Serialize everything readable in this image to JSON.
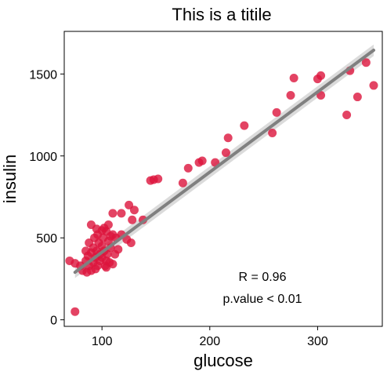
{
  "chart_data": {
    "type": "scatter",
    "title": "This is a titile",
    "xlabel": "glucose",
    "ylabel": "insulin",
    "xlim": [
      65,
      360
    ],
    "ylim": [
      -40,
      1760
    ],
    "xticks": [
      100,
      200,
      300
    ],
    "yticks": [
      0,
      500,
      1000,
      1500
    ],
    "grid": false,
    "point_color": "#dc143c",
    "trend_color": "#808080",
    "band_color": "#cccccc",
    "annotations": [
      "R = 0.96",
      "p.value < 0.01"
    ],
    "trend": {
      "x": [
        75,
        352
      ],
      "y": [
        290,
        1645
      ],
      "band_halfwidth_end": 35
    },
    "series": [
      {
        "points": [
          [
            75,
            50
          ],
          [
            70,
            360
          ],
          [
            75,
            345
          ],
          [
            80,
            330
          ],
          [
            82,
            300
          ],
          [
            85,
            360
          ],
          [
            87,
            390
          ],
          [
            88,
            330
          ],
          [
            90,
            410
          ],
          [
            90,
            300
          ],
          [
            92,
            350
          ],
          [
            92,
            440
          ],
          [
            94,
            380
          ],
          [
            95,
            420
          ],
          [
            96,
            330
          ],
          [
            97,
            470
          ],
          [
            98,
            360
          ],
          [
            98,
            400
          ],
          [
            100,
            380
          ],
          [
            100,
            450
          ],
          [
            101,
            500
          ],
          [
            102,
            420
          ],
          [
            103,
            330
          ],
          [
            104,
            360
          ],
          [
            105,
            400
          ],
          [
            106,
            480
          ],
          [
            107,
            350
          ],
          [
            108,
            440
          ],
          [
            110,
            520
          ],
          [
            112,
            400
          ],
          [
            90,
            580
          ],
          [
            95,
            555
          ],
          [
            100,
            545
          ],
          [
            104,
            540
          ],
          [
            108,
            510
          ],
          [
            113,
            500
          ],
          [
            118,
            520
          ],
          [
            123,
            490
          ],
          [
            127,
            470
          ],
          [
            115,
            430
          ],
          [
            85,
            420
          ],
          [
            88,
            470
          ],
          [
            93,
            500
          ],
          [
            96,
            520
          ],
          [
            102,
            560
          ],
          [
            106,
            580
          ],
          [
            86,
            290
          ],
          [
            94,
            310
          ],
          [
            104,
            320
          ],
          [
            110,
            340
          ],
          [
            110,
            650
          ],
          [
            118,
            650
          ],
          [
            125,
            700
          ],
          [
            130,
            670
          ],
          [
            138,
            610
          ],
          [
            128,
            610
          ],
          [
            145,
            850
          ],
          [
            148,
            855
          ],
          [
            152,
            860
          ],
          [
            175,
            835
          ],
          [
            180,
            925
          ],
          [
            190,
            960
          ],
          [
            193,
            970
          ],
          [
            205,
            960
          ],
          [
            215,
            1020
          ],
          [
            217,
            1110
          ],
          [
            232,
            1185
          ],
          [
            258,
            1140
          ],
          [
            262,
            1265
          ],
          [
            275,
            1370
          ],
          [
            278,
            1475
          ],
          [
            300,
            1470
          ],
          [
            303,
            1490
          ],
          [
            303,
            1370
          ],
          [
            327,
            1250
          ],
          [
            330,
            1520
          ],
          [
            337,
            1360
          ],
          [
            345,
            1570
          ],
          [
            352,
            1430
          ]
        ]
      }
    ]
  }
}
